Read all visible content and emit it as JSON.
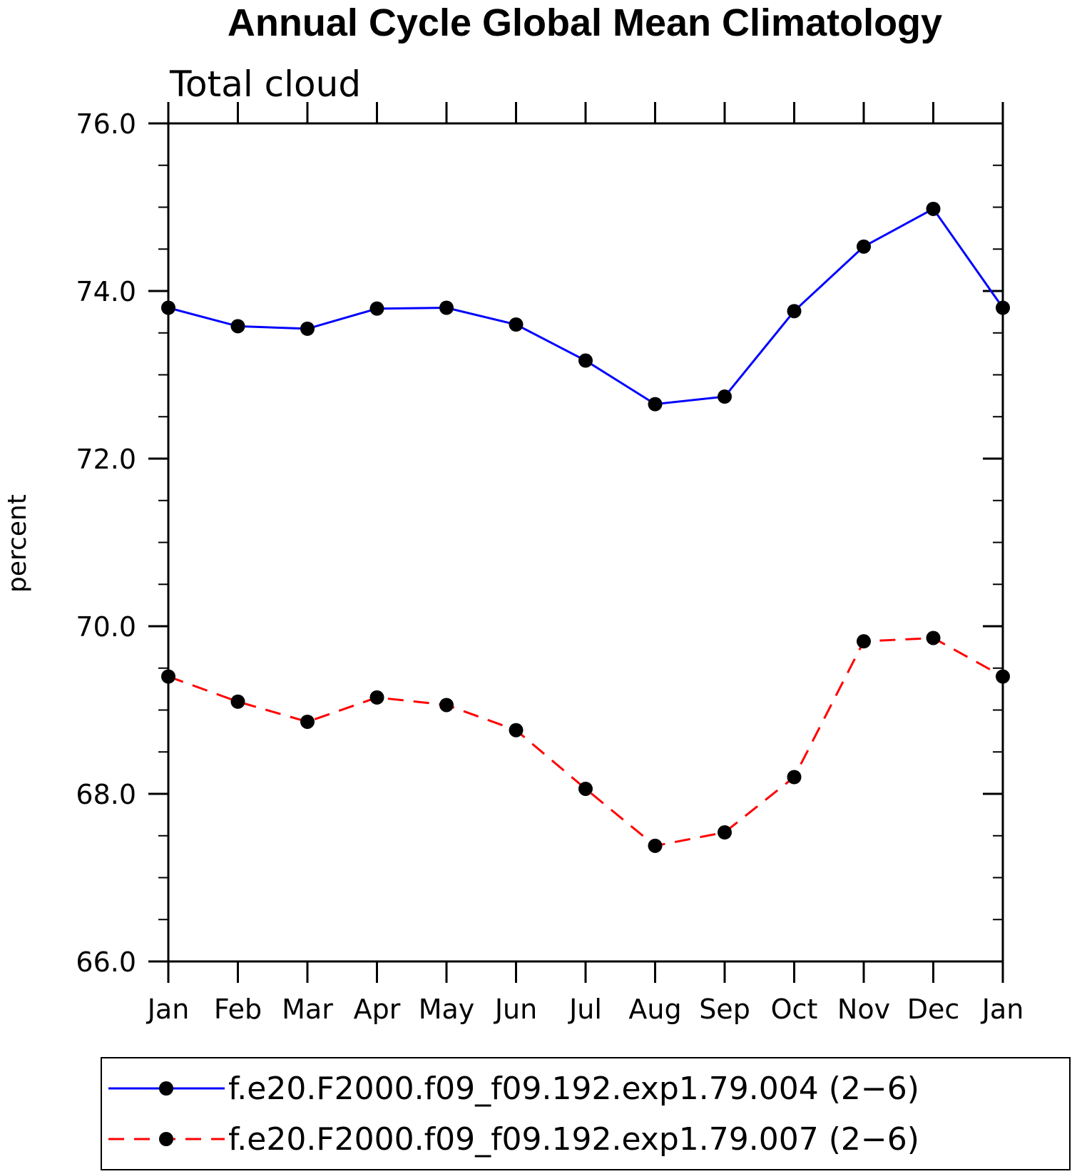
{
  "chart_data": {
    "type": "line",
    "title": "Annual Cycle Global Mean Climatology",
    "subtitle": "Total cloud",
    "xlabel": "",
    "ylabel": "percent",
    "categories": [
      "Jan",
      "Feb",
      "Mar",
      "Apr",
      "May",
      "Jun",
      "Jul",
      "Aug",
      "Sep",
      "Oct",
      "Nov",
      "Dec",
      "Jan"
    ],
    "ylim": [
      66.0,
      76.0
    ],
    "yticks": [
      "66.0",
      "68.0",
      "70.0",
      "72.0",
      "74.0",
      "76.0"
    ],
    "ytick_values": [
      66,
      68,
      70,
      72,
      74,
      76
    ],
    "y_minor_step": 0.5,
    "grid": false,
    "legend_position": "bottom",
    "series": [
      {
        "name": "f.e20.F2000.f09_f09.192.exp1.79.004 (2−6)",
        "color": "#0000ff",
        "line_style": "solid",
        "marker": "filled-circle",
        "values": [
          73.8,
          73.58,
          73.55,
          73.79,
          73.8,
          73.6,
          73.17,
          72.65,
          72.74,
          73.76,
          74.53,
          74.98,
          73.8
        ]
      },
      {
        "name": "f.e20.F2000.f09_f09.192.exp1.79.007 (2−6)",
        "color": "#ff0000",
        "line_style": "dashed",
        "marker": "filled-circle",
        "values": [
          69.4,
          69.1,
          68.86,
          69.15,
          69.06,
          68.76,
          68.06,
          67.38,
          67.54,
          68.2,
          69.82,
          69.86,
          69.4
        ]
      }
    ]
  }
}
